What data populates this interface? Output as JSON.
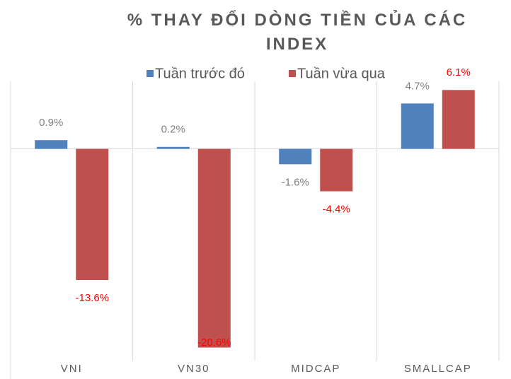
{
  "chart_data": {
    "type": "bar",
    "title": "% THAY ĐỔI DÒNG TIỀN CỦA CÁC INDEX",
    "categories": [
      "VNI",
      "VN30",
      "MIDCAP",
      "SMALLCAP"
    ],
    "series": [
      {
        "name": "Tuần trước đó",
        "color": "#4f81bd",
        "values": [
          0.9,
          0.2,
          -1.6,
          4.7
        ],
        "value_labels": [
          "0.9%",
          "0.2%",
          "-1.6%",
          "4.7%"
        ],
        "label_color": "#7f7f7f"
      },
      {
        "name": "Tuần vừa qua",
        "color": "#c0504d",
        "values": [
          -13.6,
          -20.6,
          -4.4,
          6.1
        ],
        "value_labels": [
          "-13.6%",
          "-20.6%",
          "-4.4%",
          "6.1%"
        ],
        "label_color": "#ff0000"
      }
    ],
    "ylim": [
      -21,
      7
    ],
    "legend": "top"
  }
}
